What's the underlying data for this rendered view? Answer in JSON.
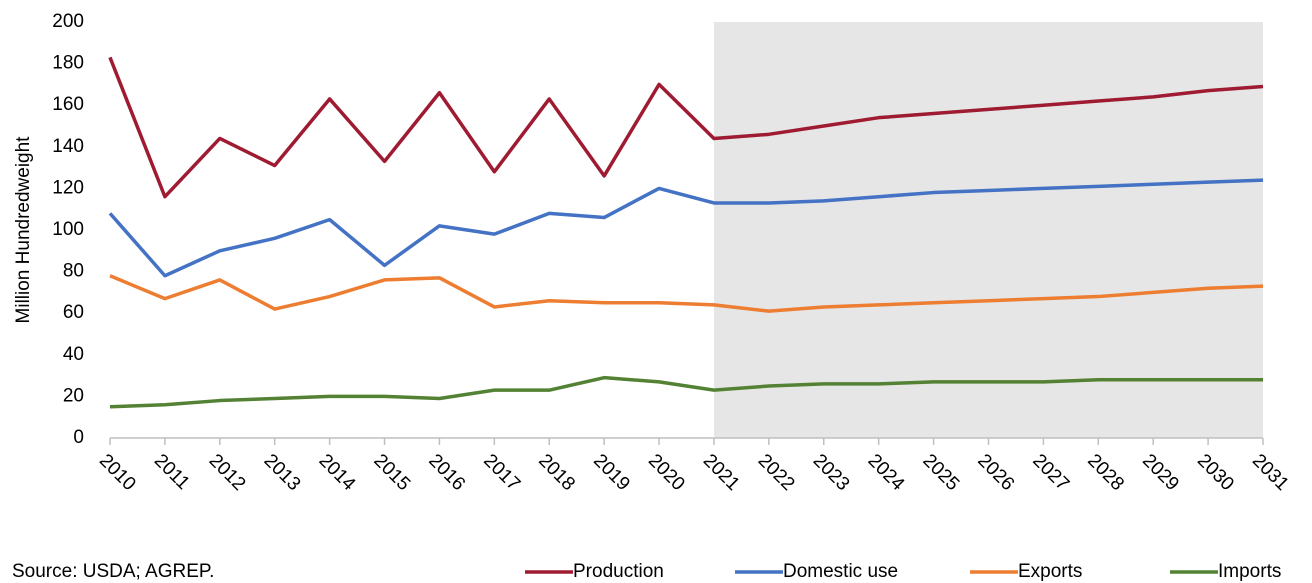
{
  "chart_data": {
    "type": "line",
    "source": "Source: USDA; AGREP.",
    "y_label": "Million Hundredweight",
    "x": [
      2010,
      2011,
      2012,
      2013,
      2014,
      2015,
      2016,
      2017,
      2018,
      2019,
      2020,
      2021,
      2022,
      2023,
      2024,
      2025,
      2026,
      2027,
      2028,
      2029,
      2030,
      2031
    ],
    "xlim": [
      2010,
      2031
    ],
    "xticks": [
      2010,
      2011,
      2012,
      2013,
      2014,
      2015,
      2016,
      2017,
      2018,
      2019,
      2020,
      2021,
      2022,
      2023,
      2024,
      2025,
      2026,
      2027,
      2028,
      2029,
      2030,
      2031
    ],
    "ylim": [
      0,
      200
    ],
    "yticks": [
      0,
      20,
      40,
      60,
      80,
      100,
      120,
      140,
      160,
      180,
      200
    ],
    "shaded_from": 2021,
    "shade_color": "#e7e6e6",
    "grid": false,
    "legend": "bottom",
    "series": [
      {
        "name": "Production",
        "color": "#9e1b32",
        "values": [
          183,
          116,
          144,
          131,
          163,
          133,
          166,
          128,
          163,
          126,
          170,
          144,
          146,
          150,
          154,
          156,
          158,
          160,
          162,
          164,
          167,
          169
        ]
      },
      {
        "name": "Domestic use",
        "color": "#4472c4",
        "values": [
          108,
          78,
          90,
          96,
          105,
          83,
          102,
          98,
          108,
          106,
          120,
          113,
          113,
          114,
          116,
          118,
          119,
          120,
          121,
          122,
          123,
          124
        ]
      },
      {
        "name": "Exports",
        "color": "#ed7d31",
        "values": [
          78,
          67,
          76,
          62,
          68,
          76,
          77,
          63,
          66,
          65,
          65,
          64,
          61,
          63,
          64,
          65,
          66,
          67,
          68,
          70,
          72,
          73
        ]
      },
      {
        "name": "Imports",
        "color": "#548235",
        "values": [
          15,
          16,
          18,
          19,
          20,
          20,
          19,
          23,
          23,
          29,
          27,
          23,
          25,
          26,
          26,
          27,
          27,
          27,
          28,
          28,
          28,
          28
        ]
      }
    ]
  }
}
